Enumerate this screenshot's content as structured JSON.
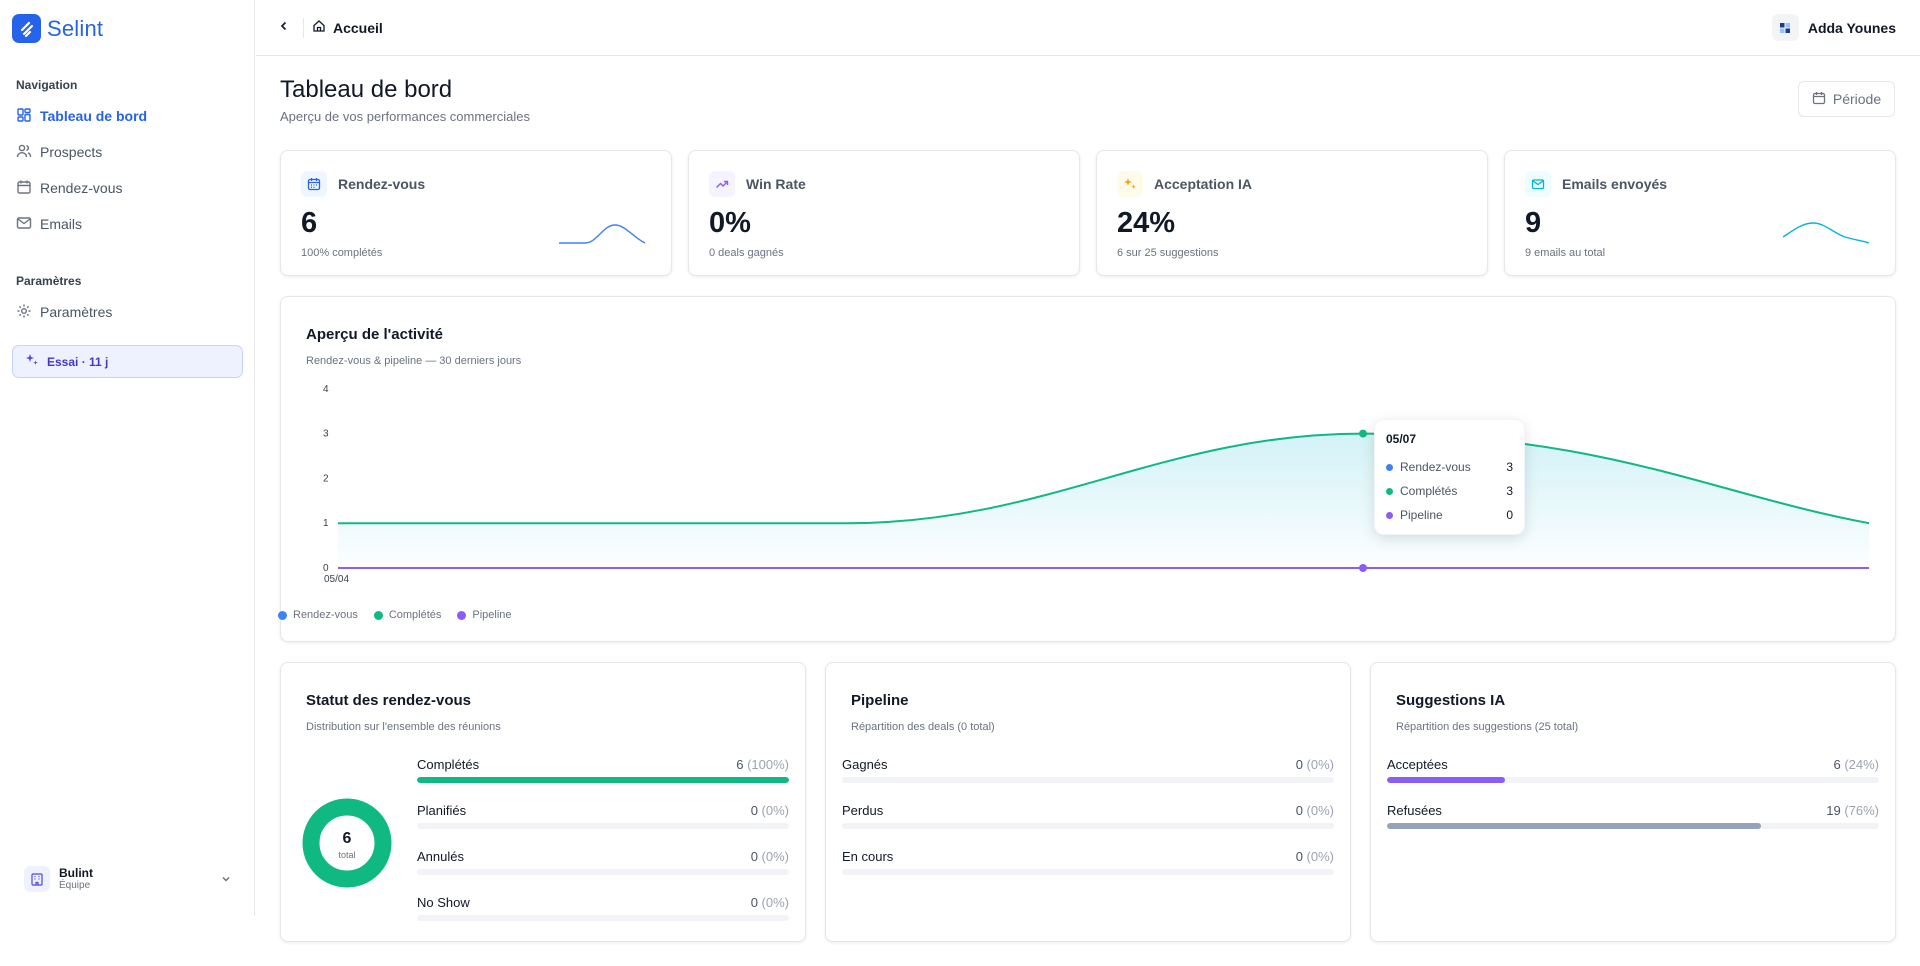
{
  "app": {
    "name": "Selint"
  },
  "sidebar": {
    "nav_title": "Navigation",
    "items": [
      {
        "label": "Tableau de bord",
        "icon": "dashboard-icon",
        "active": true
      },
      {
        "label": "Prospects",
        "icon": "users-icon"
      },
      {
        "label": "Rendez-vous",
        "icon": "calendar-icon"
      },
      {
        "label": "Emails",
        "icon": "mail-icon"
      }
    ],
    "settings_title": "Paramètres",
    "settings_items": [
      {
        "label": "Paramètres",
        "icon": "gear-icon"
      }
    ],
    "trial": "Essai · 11 j",
    "team": {
      "name": "Bulint",
      "role": "Équipe"
    }
  },
  "header": {
    "breadcrumb": "Accueil",
    "user": "Adda Younes"
  },
  "page": {
    "title": "Tableau de bord",
    "subtitle": "Aperçu de vos performances commerciales",
    "period_button": "Période"
  },
  "kpis": [
    {
      "label": "Rendez-vous",
      "value": "6",
      "sub": "100% complétés",
      "icon": "calendar-icon",
      "color": "#2563eb",
      "bg": "#eff6ff",
      "spark_color": "#3b82f6",
      "spark": [
        0,
        0,
        0,
        1,
        0
      ]
    },
    {
      "label": "Win Rate",
      "value": "0%",
      "sub": "0 deals gagnés",
      "icon": "trending-up-icon",
      "color": "#8b5cf6",
      "bg": "#f5f3ff"
    },
    {
      "label": "Acceptation IA",
      "value": "24%",
      "sub": "6 sur 25 suggestions",
      "icon": "sparkles-icon",
      "color": "#f59e0b",
      "bg": "#fffbeb"
    },
    {
      "label": "Emails envoyés",
      "value": "9",
      "sub": "9 emails au total",
      "icon": "mail-icon",
      "color": "#06b6d4",
      "bg": "#ecfeff",
      "spark_color": "#06b6d4",
      "spark": [
        0,
        3,
        1
      ]
    }
  ],
  "activity": {
    "title": "Aperçu de l'activité",
    "subtitle": "Rendez-vous & pipeline — 30 derniers jours",
    "legend": [
      {
        "name": "Rendez-vous",
        "color": "#3b82f6"
      },
      {
        "name": "Complétés",
        "color": "#10b981"
      },
      {
        "name": "Pipeline",
        "color": "#8b5cf6"
      }
    ],
    "tooltip": {
      "date": "05/07",
      "rows": [
        {
          "name": "Rendez-vous",
          "value": "3",
          "color": "#3b82f6"
        },
        {
          "name": "Complétés",
          "value": "3",
          "color": "#10b981"
        },
        {
          "name": "Pipeline",
          "value": "0",
          "color": "#8b5cf6"
        }
      ]
    }
  },
  "chart_data": {
    "type": "area",
    "x": [
      "05/04",
      "05/07",
      "last"
    ],
    "x_tick_labels": [
      "05/04"
    ],
    "y_ticks": [
      0,
      1,
      2,
      3,
      4
    ],
    "ylim": [
      0,
      4
    ],
    "series": [
      {
        "name": "Rendez-vous",
        "color": "#3b82f6",
        "values": [
          1,
          3,
          1
        ]
      },
      {
        "name": "Complétés",
        "color": "#10b981",
        "values": [
          1,
          3,
          1
        ]
      },
      {
        "name": "Pipeline",
        "color": "#8b5cf6",
        "values": [
          0,
          0,
          0
        ]
      }
    ]
  },
  "status_panel": {
    "title": "Statut des rendez-vous",
    "subtitle": "Distribution sur l'ensemble des réunions",
    "total": "6",
    "total_label": "total",
    "rows": [
      {
        "label": "Complétés",
        "count": "6",
        "pct": "(100%)",
        "fraction": 1.0,
        "color": "#10b981"
      },
      {
        "label": "Planifiés",
        "count": "0",
        "pct": "(0%)",
        "fraction": 0,
        "color": "#3b82f6"
      },
      {
        "label": "Annulés",
        "count": "0",
        "pct": "(0%)",
        "fraction": 0,
        "color": "#ef4444"
      },
      {
        "label": "No Show",
        "count": "0",
        "pct": "(0%)",
        "fraction": 0,
        "color": "#f59e0b"
      }
    ]
  },
  "pipeline_panel": {
    "title": "Pipeline",
    "subtitle": "Répartition des deals (0 total)",
    "rows": [
      {
        "label": "Gagnés",
        "count": "0",
        "pct": "(0%)",
        "fraction": 0,
        "color": "#10b981"
      },
      {
        "label": "Perdus",
        "count": "0",
        "pct": "(0%)",
        "fraction": 0,
        "color": "#ef4444"
      },
      {
        "label": "En cours",
        "count": "0",
        "pct": "(0%)",
        "fraction": 0,
        "color": "#3b82f6"
      }
    ]
  },
  "ai_panel": {
    "title": "Suggestions IA",
    "subtitle": "Répartition des suggestions (25 total)",
    "rows": [
      {
        "label": "Acceptées",
        "count": "6",
        "pct": "(24%)",
        "fraction": 0.24,
        "color": "#8b5cf6"
      },
      {
        "label": "Refusées",
        "count": "19",
        "pct": "(76%)",
        "fraction": 0.76,
        "color": "#94a3b8"
      }
    ]
  }
}
